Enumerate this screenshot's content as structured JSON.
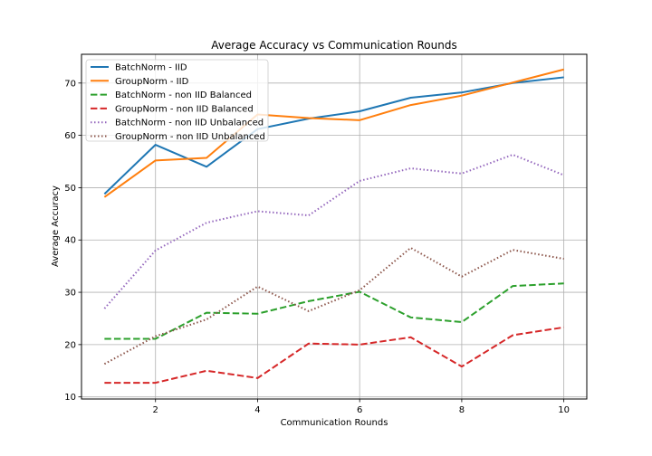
{
  "chart_data": {
    "type": "line",
    "title": "Average Accuracy vs Communication Rounds",
    "xlabel": "Communication Rounds",
    "ylabel": "Average Accuracy",
    "x": [
      1,
      2,
      3,
      4,
      5,
      6,
      7,
      8,
      9,
      10
    ],
    "xlim": [
      0.55,
      10.45
    ],
    "ylim": [
      9.6,
      75.5
    ],
    "xticks": [
      2,
      4,
      6,
      8,
      10
    ],
    "yticks": [
      10,
      20,
      30,
      40,
      50,
      60,
      70
    ],
    "grid": true,
    "legend_position": "upper-left",
    "series": [
      {
        "name": "BatchNorm - IID",
        "color": "#1f77b4",
        "style": "solid",
        "values": [
          48.8,
          58.2,
          54.0,
          61.2,
          63.2,
          64.6,
          67.2,
          68.2,
          70.0,
          71.1
        ]
      },
      {
        "name": "GroupNorm - IID",
        "color": "#ff7f0e",
        "style": "solid",
        "values": [
          48.2,
          55.2,
          55.7,
          64.0,
          63.3,
          62.9,
          65.8,
          67.6,
          70.1,
          72.6
        ]
      },
      {
        "name": "BatchNorm - non IID Balanced",
        "color": "#2ca02c",
        "style": "dashed",
        "values": [
          21.1,
          21.1,
          26.1,
          25.9,
          28.3,
          30.1,
          25.2,
          24.3,
          31.2,
          31.7
        ]
      },
      {
        "name": "GroupNorm - non IID Balanced",
        "color": "#d62728",
        "style": "dashed",
        "values": [
          12.7,
          12.7,
          15.0,
          13.6,
          20.2,
          20.0,
          21.4,
          15.8,
          21.8,
          23.3
        ]
      },
      {
        "name": "BatchNorm - non IID Unbalanced",
        "color": "#9467bd",
        "style": "dotted",
        "values": [
          26.9,
          38.0,
          43.3,
          45.5,
          44.7,
          51.3,
          53.7,
          52.7,
          56.3,
          52.4
        ]
      },
      {
        "name": "GroupNorm - non IID Unbalanced",
        "color": "#8c564b",
        "style": "dotted",
        "values": [
          16.3,
          21.6,
          24.8,
          31.1,
          26.4,
          30.4,
          38.5,
          33.0,
          38.1,
          36.4
        ]
      }
    ]
  }
}
